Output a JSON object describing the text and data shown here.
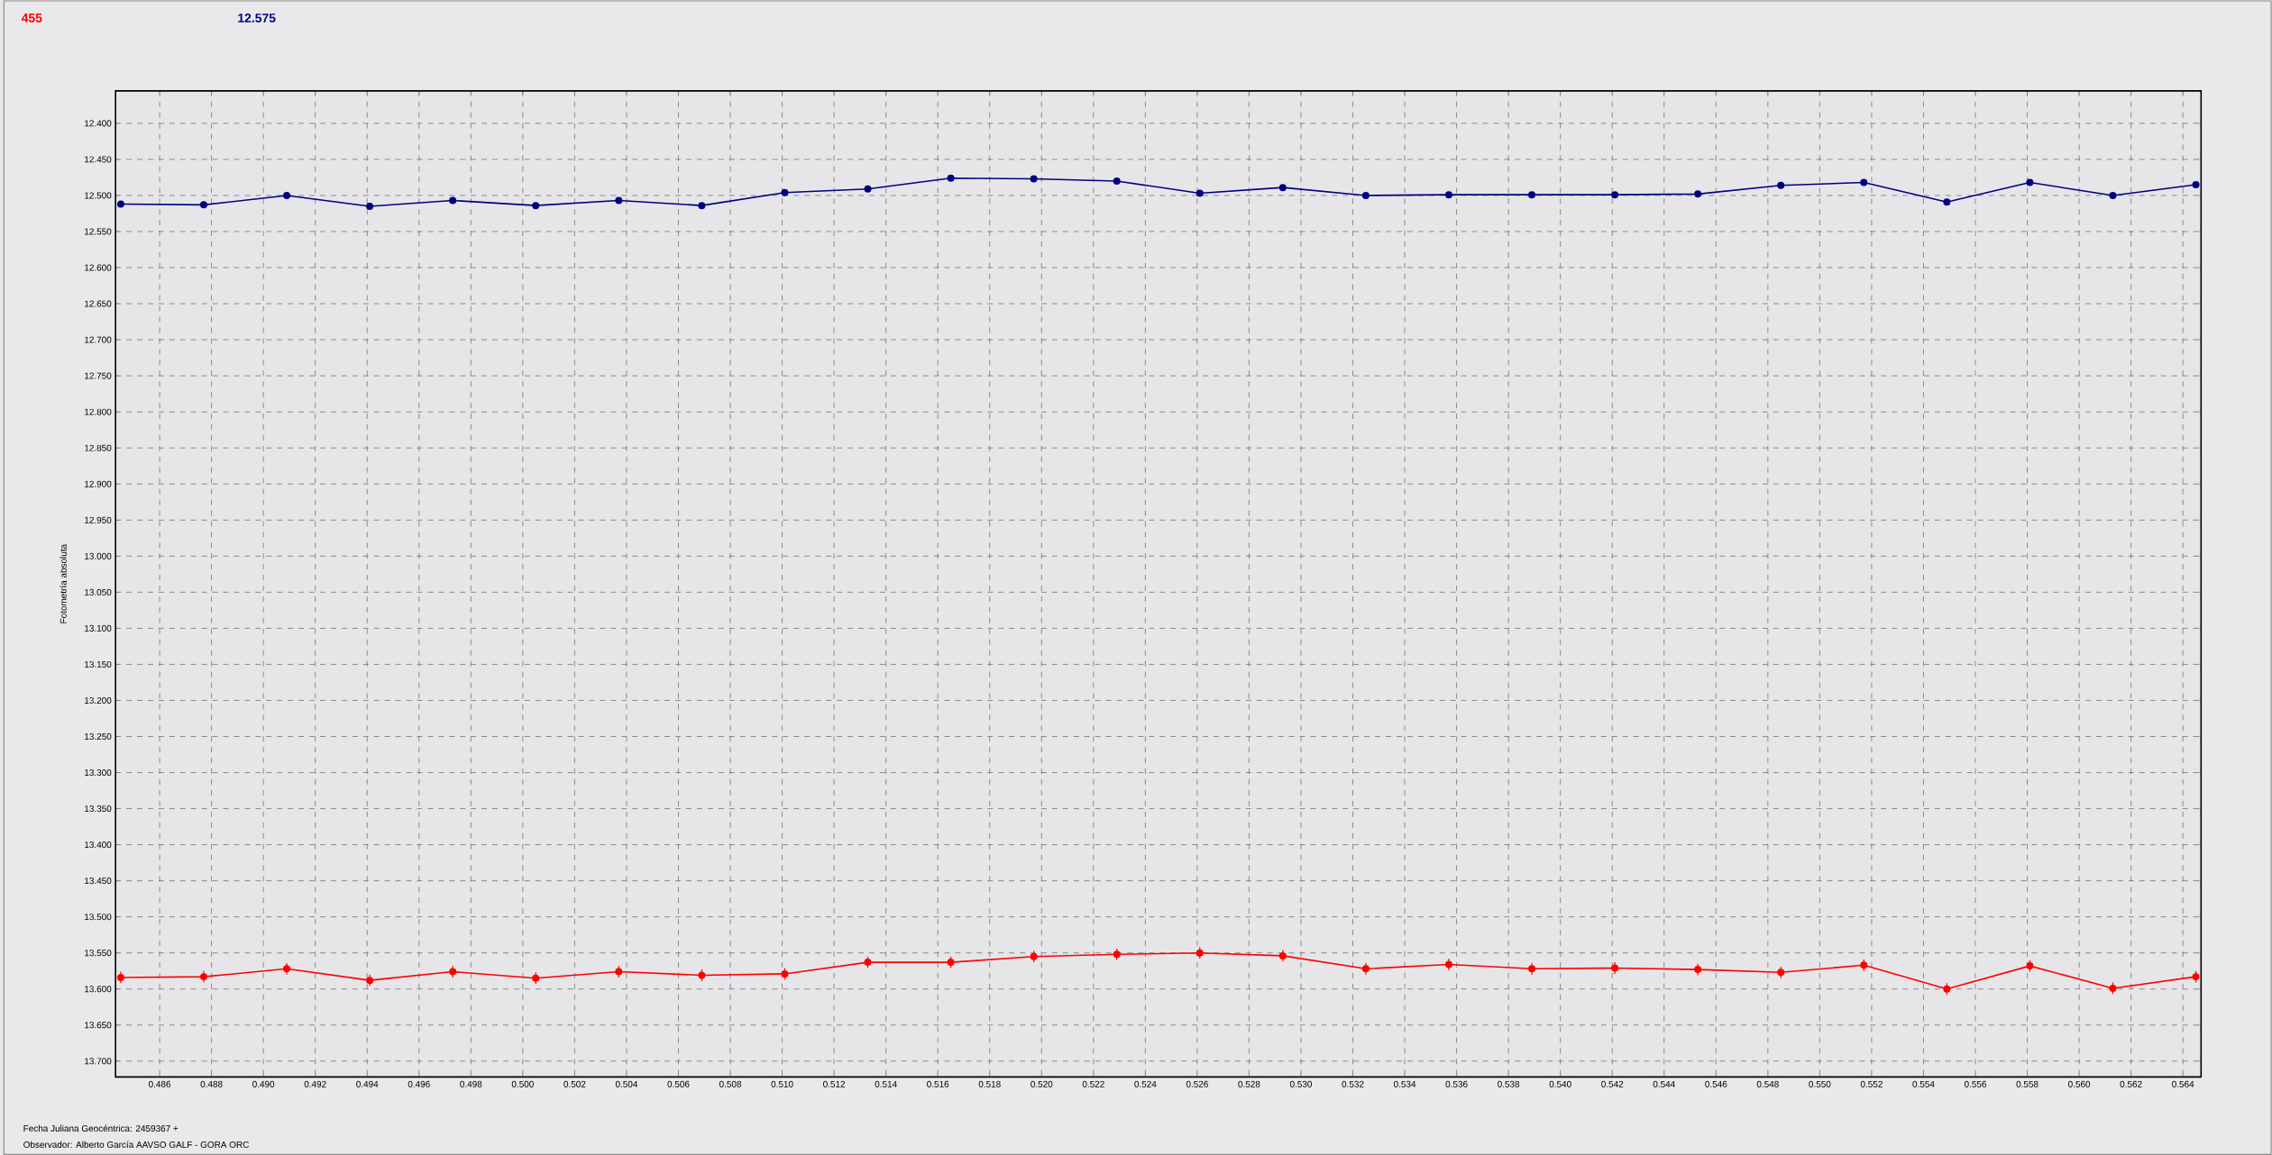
{
  "chart_data": {
    "type": "line",
    "xlabel": "Fecha Juliana Geocéntrica: 2459367 +",
    "ylabel": "Fotometría absoluta",
    "annotations": [
      "Observador: Alberto García AAVSO GALF - GORA ORC"
    ],
    "x": [
      0.4845,
      0.4877,
      0.4909,
      0.4941,
      0.4973,
      0.5005,
      0.5037,
      0.5069,
      0.5101,
      0.5133,
      0.5165,
      0.5197,
      0.5229,
      0.5261,
      0.5293,
      0.5325,
      0.5357,
      0.5389,
      0.5421,
      0.5453,
      0.5485,
      0.5517,
      0.5549,
      0.5581,
      0.5613,
      0.5645
    ],
    "series": [
      {
        "name": "455",
        "color": "#ff0000",
        "values": [
          13.584,
          13.583,
          13.572,
          13.588,
          13.576,
          13.585,
          13.576,
          13.581,
          13.579,
          13.563,
          13.563,
          13.555,
          13.552,
          13.55,
          13.554,
          13.572,
          13.566,
          13.572,
          13.571,
          13.573,
          13.577,
          13.567,
          13.6,
          13.568,
          13.599,
          13.583
        ],
        "errors": [
          0.008,
          0.008,
          0.008,
          0.008,
          0.008,
          0.008,
          0.008,
          0.008,
          0.008,
          0.008,
          0.008,
          0.008,
          0.008,
          0.008,
          0.008,
          0.008,
          0.008,
          0.008,
          0.008,
          0.008,
          0.008,
          0.008,
          0.008,
          0.008,
          0.008,
          0.008
        ]
      },
      {
        "name": "12.575",
        "color": "#000080",
        "values": [
          12.512,
          12.513,
          12.5,
          12.515,
          12.507,
          12.514,
          12.507,
          12.514,
          12.496,
          12.491,
          12.476,
          12.477,
          12.48,
          12.497,
          12.489,
          12.5,
          12.499,
          12.499,
          12.499,
          12.498,
          12.486,
          12.482,
          12.509,
          12.482,
          12.5,
          12.485
        ],
        "errors": [
          0.003,
          0.003,
          0.003,
          0.003,
          0.003,
          0.003,
          0.003,
          0.003,
          0.003,
          0.003,
          0.003,
          0.003,
          0.003,
          0.003,
          0.003,
          0.003,
          0.003,
          0.003,
          0.003,
          0.003,
          0.003,
          0.003,
          0.003,
          0.003,
          0.003,
          0.003
        ]
      }
    ],
    "xlim": [
      0.4843,
      0.5647
    ],
    "ylim": [
      13.722,
      12.355
    ],
    "xticks": [
      {
        "value": 0.486,
        "label": "0.486"
      },
      {
        "value": 0.488,
        "label": "0.488"
      },
      {
        "value": 0.49,
        "label": "0.490"
      },
      {
        "value": 0.492,
        "label": "0.492"
      },
      {
        "value": 0.494,
        "label": "0.494"
      },
      {
        "value": 0.496,
        "label": "0.496"
      },
      {
        "value": 0.498,
        "label": "0.498"
      },
      {
        "value": 0.5,
        "label": "0.500"
      },
      {
        "value": 0.502,
        "label": "0.502"
      },
      {
        "value": 0.504,
        "label": "0.504"
      },
      {
        "value": 0.506,
        "label": "0.506"
      },
      {
        "value": 0.508,
        "label": "0.508"
      },
      {
        "value": 0.51,
        "label": "0.510"
      },
      {
        "value": 0.512,
        "label": "0.512"
      },
      {
        "value": 0.514,
        "label": "0.514"
      },
      {
        "value": 0.516,
        "label": "0.516"
      },
      {
        "value": 0.518,
        "label": "0.518"
      },
      {
        "value": 0.52,
        "label": "0.520"
      },
      {
        "value": 0.522,
        "label": "0.522"
      },
      {
        "value": 0.524,
        "label": "0.524"
      },
      {
        "value": 0.526,
        "label": "0.526"
      },
      {
        "value": 0.528,
        "label": "0.528"
      },
      {
        "value": 0.53,
        "label": "0.530"
      },
      {
        "value": 0.532,
        "label": "0.532"
      },
      {
        "value": 0.534,
        "label": "0.534"
      },
      {
        "value": 0.536,
        "label": "0.536"
      },
      {
        "value": 0.538,
        "label": "0.538"
      },
      {
        "value": 0.54,
        "label": "0.540"
      },
      {
        "value": 0.542,
        "label": "0.542"
      },
      {
        "value": 0.544,
        "label": "0.544"
      },
      {
        "value": 0.546,
        "label": "0.546"
      },
      {
        "value": 0.548,
        "label": "0.548"
      },
      {
        "value": 0.55,
        "label": "0.550"
      },
      {
        "value": 0.552,
        "label": "0.552"
      },
      {
        "value": 0.554,
        "label": "0.554"
      },
      {
        "value": 0.556,
        "label": "0.556"
      },
      {
        "value": 0.558,
        "label": "0.558"
      },
      {
        "value": 0.56,
        "label": "0.560"
      },
      {
        "value": 0.562,
        "label": "0.562"
      },
      {
        "value": 0.564,
        "label": "0.564"
      }
    ],
    "yticks": [
      {
        "value": 12.4,
        "label": "12.400"
      },
      {
        "value": 12.45,
        "label": "12.450"
      },
      {
        "value": 12.5,
        "label": "12.500"
      },
      {
        "value": 12.55,
        "label": "12.550"
      },
      {
        "value": 12.6,
        "label": "12.600"
      },
      {
        "value": 12.65,
        "label": "12.650"
      },
      {
        "value": 12.7,
        "label": "12.700"
      },
      {
        "value": 12.75,
        "label": "12.750"
      },
      {
        "value": 12.8,
        "label": "12.800"
      },
      {
        "value": 12.85,
        "label": "12.850"
      },
      {
        "value": 12.9,
        "label": "12.900"
      },
      {
        "value": 12.95,
        "label": "12.950"
      },
      {
        "value": 13.0,
        "label": "13.000"
      },
      {
        "value": 13.05,
        "label": "13.050"
      },
      {
        "value": 13.1,
        "label": "13.100"
      },
      {
        "value": 13.15,
        "label": "13.150"
      },
      {
        "value": 13.2,
        "label": "13.200"
      },
      {
        "value": 13.25,
        "label": "13.250"
      },
      {
        "value": 13.3,
        "label": "13.300"
      },
      {
        "value": 13.35,
        "label": "13.350"
      },
      {
        "value": 13.4,
        "label": "13.400"
      },
      {
        "value": 13.45,
        "label": "13.450"
      },
      {
        "value": 13.5,
        "label": "13.500"
      },
      {
        "value": 13.55,
        "label": "13.550"
      },
      {
        "value": 13.6,
        "label": "13.600"
      },
      {
        "value": 13.65,
        "label": "13.650"
      },
      {
        "value": 13.7,
        "label": "13.700"
      }
    ],
    "grid": true,
    "legend": "top left",
    "marker": "circle",
    "line_style": "solid"
  }
}
